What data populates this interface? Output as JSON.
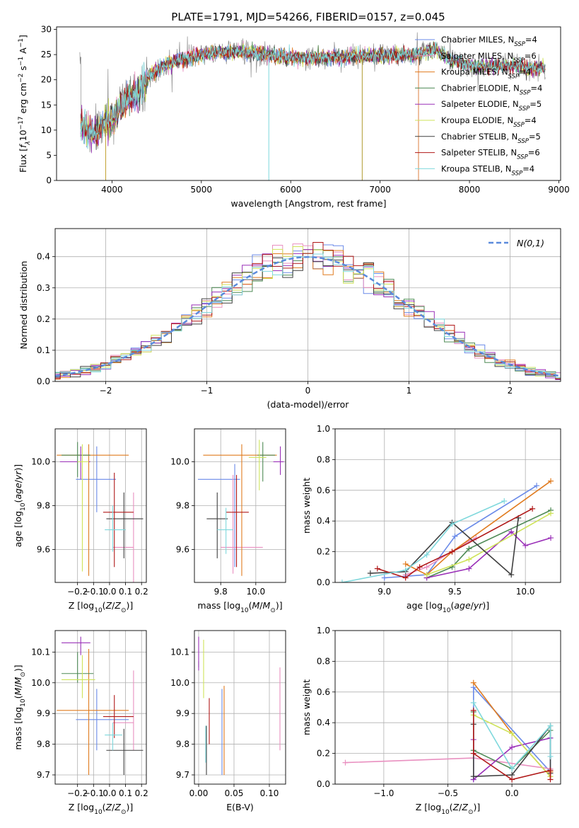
{
  "figure_title": "PLATE=1791, MJD=54266, FIBERID=0157, z=0.045",
  "models": [
    {
      "name": "Chabrier MILES, N",
      "sub": "SSP",
      "tail": "=4",
      "color": "#6a8ae8"
    },
    {
      "name": "Salpeter MILES, N",
      "sub": "SSP",
      "tail": "=6",
      "color": "#e990c0"
    },
    {
      "name": "Kroupa MILES, N",
      "sub": "SSP",
      "tail": "=4",
      "color": "#e07b1f"
    },
    {
      "name": "Chabrier ELODIE, N",
      "sub": "SSP",
      "tail": "=4",
      "color": "#4e8a55"
    },
    {
      "name": "Salpeter ELODIE, N",
      "sub": "SSP",
      "tail": "=5",
      "color": "#9a30b8"
    },
    {
      "name": "Kroupa ELODIE, N",
      "sub": "SSP",
      "tail": "=4",
      "color": "#cfe35a"
    },
    {
      "name": "Chabrier STELIB, N",
      "sub": "SSP",
      "tail": "=5",
      "color": "#404040"
    },
    {
      "name": "Salpeter STELIB, N",
      "sub": "SSP",
      "tail": "=6",
      "color": "#b01818"
    },
    {
      "name": "Kroupa STELIB, N",
      "sub": "SSP",
      "tail": "=4",
      "color": "#7fd8dc"
    }
  ],
  "chart_data": [
    {
      "id": "spectrum",
      "type": "line",
      "xlabel": "wavelength [Angstrom, rest frame]",
      "ylabel": "Flux [f_λ 10^-17 erg cm^-2 s^-1 A^-1]",
      "xlim": [
        3380,
        9020
      ],
      "ylim": [
        0,
        30.5
      ],
      "xticks": [
        4000,
        5000,
        6000,
        7000,
        8000,
        9000
      ],
      "yticks": [
        0,
        5,
        10,
        15,
        20,
        25,
        30
      ],
      "legend_position": "right",
      "continuum": [
        [
          3650,
          11
        ],
        [
          3700,
          10
        ],
        [
          3800,
          9
        ],
        [
          3900,
          11
        ],
        [
          3950,
          12
        ],
        [
          4000,
          12
        ],
        [
          4100,
          15
        ],
        [
          4200,
          17
        ],
        [
          4300,
          17.5
        ],
        [
          4400,
          20.5
        ],
        [
          4600,
          23
        ],
        [
          4800,
          24
        ],
        [
          5000,
          25
        ],
        [
          5200,
          25.5
        ],
        [
          5500,
          25.5
        ],
        [
          5800,
          24.8
        ],
        [
          6000,
          24.5
        ],
        [
          6300,
          24.3
        ],
        [
          6600,
          24.5
        ],
        [
          6900,
          24.8
        ],
        [
          7200,
          24.8
        ],
        [
          7400,
          25
        ],
        [
          7600,
          26
        ],
        [
          7800,
          24
        ],
        [
          8000,
          22.8
        ],
        [
          8200,
          22.6
        ],
        [
          8400,
          22.8
        ],
        [
          8600,
          22.5
        ],
        [
          8800,
          22.3
        ]
      ],
      "model_end": [
        7430,
        7430,
        7430,
        8850,
        8850,
        8850,
        8850,
        8850,
        8850
      ]
    },
    {
      "id": "residuals",
      "type": "histogram",
      "xlabel": "(data-model)/error",
      "ylabel": "Normed distribution",
      "xlim": [
        -2.5,
        2.5
      ],
      "ylim": [
        0,
        0.49
      ],
      "xticks": [
        -2,
        -1,
        0,
        1,
        2
      ],
      "yticks": [
        0.0,
        0.1,
        0.2,
        0.3,
        0.4
      ],
      "grid": true,
      "bin_width": 0.1,
      "reference_label": "N(0,1)",
      "reference_color": "#5b8bdc",
      "legend_position": "top-right"
    },
    {
      "id": "age-vs-Z",
      "type": "scatter",
      "xlabel": "Z [log10(Z/Zsun)]",
      "ylabel": "age [log10(age/yr)]",
      "xlim": [
        -0.34,
        0.23
      ],
      "ylim": [
        9.45,
        10.15
      ],
      "xticks": [
        -0.2,
        -0.1,
        0.0,
        0.1,
        0.2
      ],
      "yticks": [
        9.6,
        9.8,
        10.0
      ],
      "grid": true,
      "points": [
        {
          "x": -0.08,
          "y": 9.92,
          "xerr": [
            0.13,
            0.12
          ],
          "yerr": [
            0.15,
            0.15
          ]
        },
        {
          "x": 0.15,
          "y": 9.61,
          "xerr": [
            0.13,
            0.0
          ],
          "yerr": [
            0.16,
            0.25
          ]
        },
        {
          "x": -0.13,
          "y": 10.03,
          "xerr": [
            0.2,
            0.25
          ],
          "yerr": [
            0.55,
            0.05
          ]
        },
        {
          "x": -0.2,
          "y": 10.03,
          "xerr": [
            0.1,
            0.08
          ],
          "yerr": [
            0.1,
            0.06
          ]
        },
        {
          "x": -0.18,
          "y": 10.0,
          "xerr": [
            0.13,
            0.06
          ],
          "yerr": [
            0.08,
            0.07
          ]
        },
        {
          "x": -0.17,
          "y": 10.0,
          "xerr": [
            0.03,
            0.04
          ],
          "yerr": [
            0.5,
            0.08
          ]
        },
        {
          "x": 0.09,
          "y": 9.74,
          "xerr": [
            0.11,
            0.12
          ],
          "yerr": [
            0.18,
            0.12
          ]
        },
        {
          "x": 0.03,
          "y": 9.77,
          "xerr": [
            0.07,
            0.12
          ],
          "yerr": [
            0.25,
            0.18
          ]
        },
        {
          "x": 0.02,
          "y": 9.69,
          "xerr": [
            0.05,
            0.08
          ],
          "yerr": [
            0.1,
            0.11
          ]
        }
      ]
    },
    {
      "id": "age-vs-mass",
      "type": "scatter",
      "xlabel": "mass [log10(M/Msun)]",
      "ylabel": "",
      "xlim": [
        9.65,
        10.17
      ],
      "ylim": [
        9.45,
        10.15
      ],
      "xticks": [
        9.8,
        10.0
      ],
      "yticks": [
        9.6,
        9.8,
        10.0
      ],
      "grid": true,
      "points": [
        {
          "x": 9.88,
          "y": 9.92,
          "xerr": [
            0.21,
            0.03
          ],
          "yerr": [
            0.4,
            0.07
          ]
        },
        {
          "x": 9.87,
          "y": 9.61,
          "xerr": [
            0.07,
            0.17
          ],
          "yerr": [
            0.12,
            0.33
          ]
        },
        {
          "x": 9.92,
          "y": 10.03,
          "xerr": [
            0.22,
            0.2
          ],
          "yerr": [
            0.55,
            0.05
          ]
        },
        {
          "x": 10.04,
          "y": 10.03,
          "xerr": [
            0.03,
            0.07
          ],
          "yerr": [
            0.12,
            0.06
          ]
        },
        {
          "x": 10.14,
          "y": 10.0,
          "xerr": [
            0.04,
            0.02
          ],
          "yerr": [
            0.06,
            0.07
          ]
        },
        {
          "x": 10.02,
          "y": 10.02,
          "xerr": [
            0.06,
            0.04
          ],
          "yerr": [
            0.15,
            0.08
          ]
        },
        {
          "x": 9.78,
          "y": 9.74,
          "xerr": [
            0.06,
            0.06
          ],
          "yerr": [
            0.18,
            0.12
          ]
        },
        {
          "x": 9.89,
          "y": 9.77,
          "xerr": [
            0.06,
            0.07
          ],
          "yerr": [
            0.25,
            0.17
          ]
        },
        {
          "x": 9.83,
          "y": 9.69,
          "xerr": [
            0.05,
            0.04
          ],
          "yerr": [
            0.11,
            0.1
          ]
        }
      ]
    },
    {
      "id": "mass-weight-vs-age",
      "type": "line",
      "xlabel": "age [log10(age/yr)]",
      "ylabel": "mass weight",
      "xlim": [
        8.65,
        10.25
      ],
      "ylim": [
        0,
        1.0
      ],
      "xticks": [
        9.0,
        9.5,
        10.0
      ],
      "yticks": [
        0.0,
        0.2,
        0.4,
        0.6,
        0.8,
        1.0
      ],
      "grid": true,
      "series": [
        {
          "x": [
            9.0,
            9.3,
            9.5,
            10.08
          ],
          "y": [
            0.03,
            0.05,
            0.3,
            0.63
          ]
        },
        {
          "x": [
            9.15,
            9.3,
            9.6,
            9.65
          ],
          "y": [
            0.05,
            0.1,
            0.27,
            0.29
          ]
        },
        {
          "x": [
            9.15,
            9.3,
            9.48,
            10.18
          ],
          "y": [
            0.12,
            0.05,
            0.2,
            0.66
          ]
        },
        {
          "x": [
            9.3,
            9.48,
            9.6,
            10.18
          ],
          "y": [
            0.03,
            0.1,
            0.22,
            0.47
          ]
        },
        {
          "x": [
            9.3,
            9.6,
            9.9,
            10.0,
            10.18
          ],
          "y": [
            0.03,
            0.09,
            0.33,
            0.24,
            0.29
          ]
        },
        {
          "x": [
            9.3,
            9.6,
            10.18
          ],
          "y": [
            0.05,
            0.15,
            0.45
          ]
        },
        {
          "x": [
            8.9,
            9.15,
            9.48,
            9.9,
            9.95
          ],
          "y": [
            0.06,
            0.07,
            0.39,
            0.05,
            0.42
          ]
        },
        {
          "x": [
            8.95,
            9.15,
            9.25,
            9.48,
            10.05
          ],
          "y": [
            0.09,
            0.03,
            0.1,
            0.2,
            0.48
          ]
        },
        {
          "x": [
            8.7,
            9.15,
            9.3,
            9.48,
            9.85
          ],
          "y": [
            0.0,
            0.08,
            0.18,
            0.38,
            0.53
          ]
        }
      ]
    },
    {
      "id": "mass-vs-Z",
      "type": "scatter",
      "xlabel": "Z [log10(Z/Zsun)]",
      "ylabel": "mass [log10(M/Msun)]",
      "xlim": [
        -0.34,
        0.23
      ],
      "ylim": [
        9.67,
        10.17
      ],
      "xticks": [
        -0.2,
        -0.1,
        0.0,
        0.1,
        0.2
      ],
      "yticks": [
        9.7,
        9.8,
        9.9,
        10.0,
        10.1
      ],
      "grid": true,
      "points": [
        {
          "x": -0.08,
          "y": 9.88,
          "xerr": [
            0.13,
            0.2
          ],
          "yerr": [
            0.1,
            0.1
          ]
        },
        {
          "x": 0.15,
          "y": 9.87,
          "xerr": [
            0.13,
            0.0
          ],
          "yerr": [
            0.09,
            0.17
          ]
        },
        {
          "x": -0.13,
          "y": 9.91,
          "xerr": [
            0.2,
            0.25
          ],
          "yerr": [
            0.21,
            0.2
          ]
        },
        {
          "x": -0.2,
          "y": 10.03,
          "xerr": [
            0.1,
            0.1
          ],
          "yerr": [
            0.03,
            0.07
          ]
        },
        {
          "x": -0.18,
          "y": 10.13,
          "xerr": [
            0.12,
            0.06
          ],
          "yerr": [
            0.04,
            0.02
          ]
        },
        {
          "x": -0.17,
          "y": 10.01,
          "xerr": [
            0.13,
            0.08
          ],
          "yerr": [
            0.06,
            0.08
          ]
        },
        {
          "x": 0.09,
          "y": 9.78,
          "xerr": [
            0.11,
            0.12
          ],
          "yerr": [
            0.08,
            0.07
          ]
        },
        {
          "x": 0.03,
          "y": 9.89,
          "xerr": [
            0.07,
            0.12
          ],
          "yerr": [
            0.07,
            0.07
          ]
        },
        {
          "x": 0.02,
          "y": 9.83,
          "xerr": [
            0.05,
            0.06
          ],
          "yerr": [
            0.05,
            0.04
          ]
        }
      ]
    },
    {
      "id": "mass-vs-EBV",
      "type": "scatter",
      "xlabel": "E(B-V)",
      "ylabel": "",
      "xlim": [
        -0.006,
        0.123
      ],
      "ylim": [
        9.67,
        10.17
      ],
      "xticks": [
        0.0,
        0.05,
        0.1
      ],
      "yticks": [
        9.7,
        9.8,
        9.9,
        10.0,
        10.1
      ],
      "grid": true,
      "points": [
        {
          "x": 0.033,
          "y": 9.88,
          "xerr": [
            0,
            0
          ],
          "yerr": [
            0.18,
            0.1
          ]
        },
        {
          "x": 0.115,
          "y": 9.91,
          "xerr": [
            0,
            0
          ],
          "yerr": [
            0.13,
            0.14
          ]
        },
        {
          "x": 0.036,
          "y": 9.85,
          "xerr": [
            0,
            0
          ],
          "yerr": [
            0.15,
            0.14
          ]
        },
        {
          "x": 0.0,
          "y": 10.05,
          "xerr": [
            0,
            0
          ],
          "yerr": [
            0.0,
            0.02
          ]
        },
        {
          "x": 0.0,
          "y": 10.1,
          "xerr": [
            0,
            0
          ],
          "yerr": [
            0.06,
            0.05
          ]
        },
        {
          "x": 0.007,
          "y": 10.05,
          "xerr": [
            0,
            0
          ],
          "yerr": [
            0.1,
            0.09
          ]
        },
        {
          "x": 0.011,
          "y": 9.79,
          "xerr": [
            0,
            0
          ],
          "yerr": [
            0.09,
            0.07
          ]
        },
        {
          "x": 0.015,
          "y": 9.88,
          "xerr": [
            0,
            0
          ],
          "yerr": [
            0.08,
            0.07
          ]
        },
        {
          "x": 0.01,
          "y": 9.8,
          "xerr": [
            0,
            0
          ],
          "yerr": [
            0.06,
            0.06
          ]
        }
      ]
    },
    {
      "id": "mass-weight-vs-Z",
      "type": "line",
      "xlabel": "Z [log10(Z/Zsun)]",
      "ylabel": "mass weight",
      "xlim": [
        -1.38,
        0.38
      ],
      "ylim": [
        0,
        1.0
      ],
      "xticks": [
        -1.0,
        -0.5,
        0.0
      ],
      "yticks": [
        0.0,
        0.2,
        0.4,
        0.6,
        0.8,
        1.0
      ],
      "grid": true,
      "series": [
        {
          "x": [
            -0.3,
            -0.3,
            0.3,
            0.3
          ],
          "y": [
            0.03,
            0.63,
            0.08,
            0.3
          ]
        },
        {
          "x": [
            -1.3,
            -0.3,
            0.3,
            0.3
          ],
          "y": [
            0.14,
            0.17,
            0.1,
            0.08
          ]
        },
        {
          "x": [
            -0.3,
            0.0,
            0.3,
            0.3
          ],
          "y": [
            0.66,
            0.33,
            0.05,
            0.08
          ]
        },
        {
          "x": [
            -0.3,
            -0.3,
            0.0,
            0.3
          ],
          "y": [
            0.47,
            0.22,
            0.1,
            0.35
          ]
        },
        {
          "x": [
            -0.3,
            -0.3,
            0.0,
            0.3
          ],
          "y": [
            0.29,
            0.03,
            0.24,
            0.3
          ]
        },
        {
          "x": [
            -0.3,
            0.0,
            0.3
          ],
          "y": [
            0.45,
            0.33,
            0.05
          ]
        },
        {
          "x": [
            -0.3,
            -0.3,
            0.0,
            0.3,
            0.3
          ],
          "y": [
            0.39,
            0.05,
            0.06,
            0.38,
            0.07
          ]
        },
        {
          "x": [
            -0.3,
            -0.3,
            0.0,
            0.3,
            0.3
          ],
          "y": [
            0.48,
            0.2,
            0.03,
            0.09,
            0.03
          ]
        },
        {
          "x": [
            -0.3,
            0.0,
            0.3,
            0.3
          ],
          "y": [
            0.53,
            0.1,
            0.38,
            0.18
          ]
        }
      ]
    }
  ]
}
